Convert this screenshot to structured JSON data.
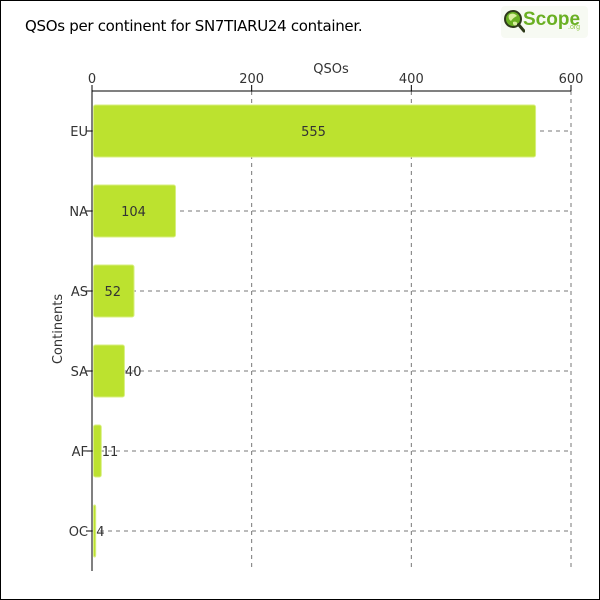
{
  "chart_data": {
    "type": "bar",
    "orientation": "horizontal",
    "title": "QSOs per continent for SN7TIARU24 container.",
    "xlabel": "QSOs",
    "ylabel": "Continents",
    "xlim": [
      0,
      600
    ],
    "x_ticks": [
      0,
      200,
      400,
      600
    ],
    "categories": [
      "EU",
      "NA",
      "AS",
      "SA",
      "AF",
      "OC"
    ],
    "values": [
      555,
      104,
      52,
      40,
      11,
      4
    ],
    "grid": true,
    "x_axis_position": "top"
  },
  "logo": {
    "text": "Scope",
    "suffix": ".org"
  },
  "colors": {
    "bar_fill": "#bce22f",
    "bar_edge": "#d8ef80",
    "grid": "#777777",
    "label_text": "#333333",
    "logo_green": "#6ab023"
  }
}
